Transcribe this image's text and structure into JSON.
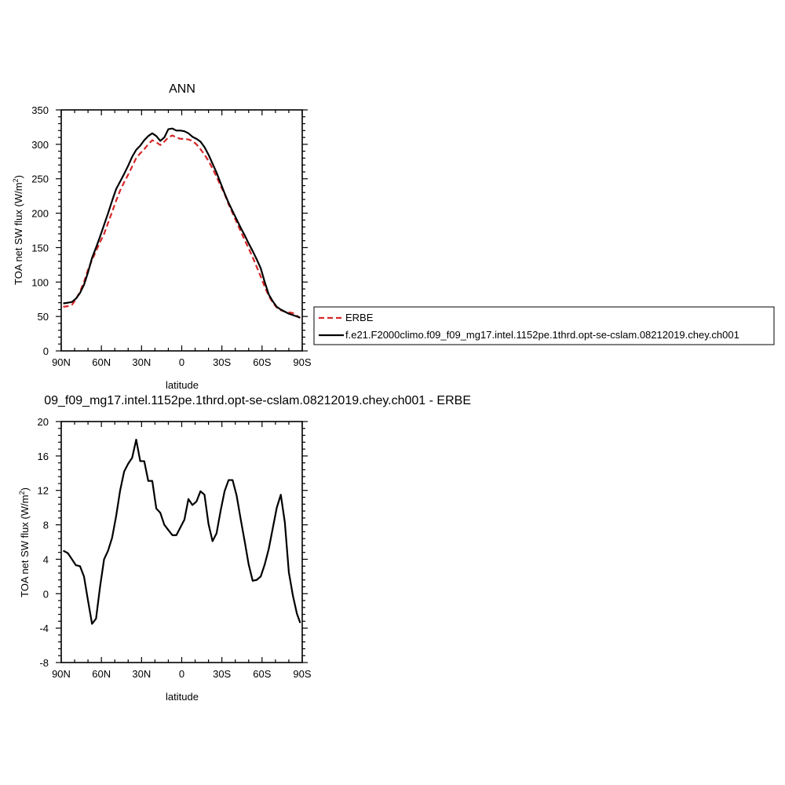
{
  "chart_data": [
    {
      "type": "line",
      "title": "ANN",
      "xlabel": "latitude",
      "ylabel": "TOA net SW flux (W/m",
      "ylabel_sup": "2",
      "ylabel_close": ")",
      "xlim": [
        90,
        -90
      ],
      "ylim": [
        0,
        350
      ],
      "x_ticks": [
        90,
        60,
        30,
        0,
        -30,
        -60,
        -90
      ],
      "x_tick_labels": [
        "90N",
        "60N",
        "30N",
        "0",
        "30S",
        "60S",
        "90S"
      ],
      "y_ticks": [
        0,
        50,
        100,
        150,
        200,
        250,
        300,
        350
      ],
      "y_tick_labels": [
        "0",
        "50",
        "100",
        "150",
        "200",
        "250",
        "300",
        "350"
      ],
      "legend": "right",
      "series": [
        {
          "name": "ERBE",
          "color": "#d62728",
          "dash": "dashed",
          "x": [
            88.5,
            85,
            82,
            79,
            76,
            73,
            70,
            67,
            64,
            61,
            58,
            55,
            52,
            49,
            46,
            43,
            40,
            37,
            34,
            31,
            28,
            25,
            22,
            19,
            16,
            13,
            10,
            7,
            4,
            1,
            -2,
            -5,
            -8,
            -11,
            -14,
            -17,
            -20,
            -23,
            -26,
            -29,
            -32,
            -35,
            -38,
            -41,
            -44,
            -47,
            -50,
            -53,
            -56,
            -59,
            -62,
            -65,
            -68,
            -71,
            -74,
            -77,
            -80,
            -83,
            -86,
            -88.5
          ],
          "values": [
            64,
            65,
            67,
            75,
            86,
            100,
            118,
            132,
            145,
            158,
            170,
            186,
            202,
            218,
            233,
            245,
            256,
            268,
            280,
            287,
            293,
            300,
            306,
            303,
            299,
            304,
            310,
            313,
            310,
            308,
            308,
            307,
            305,
            300,
            293,
            285,
            276,
            265,
            253,
            240,
            228,
            213,
            200,
            187,
            174,
            161,
            149,
            136,
            122,
            108,
            93,
            80,
            70,
            63,
            59,
            57,
            56,
            55,
            51,
            48
          ]
        },
        {
          "name": "f.e21.F2000climo.f09_f09_mg17.intel.1152pe.1thrd.opt-se-cslam.08212019.chey.ch001",
          "color": "#000000",
          "dash": "solid",
          "x": [
            88.5,
            85,
            82,
            79,
            76,
            73,
            70,
            67,
            64,
            61,
            58,
            55,
            52,
            49,
            46,
            43,
            40,
            37,
            34,
            31,
            28,
            25,
            22,
            19,
            16,
            13,
            10,
            7,
            4,
            1,
            -2,
            -5,
            -8,
            -11,
            -14,
            -17,
            -20,
            -23,
            -26,
            -29,
            -32,
            -35,
            -38,
            -41,
            -44,
            -47,
            -50,
            -53,
            -56,
            -59,
            -62,
            -65,
            -68,
            -71,
            -74,
            -77,
            -80,
            -83,
            -86,
            -88.5
          ],
          "values": [
            69,
            70,
            71,
            76,
            84,
            96,
            114,
            135,
            150,
            166,
            183,
            200,
            218,
            235,
            246,
            257,
            269,
            282,
            292,
            298,
            306,
            312,
            316,
            312,
            305,
            310,
            322,
            323,
            320,
            320,
            319,
            316,
            311,
            308,
            304,
            296,
            285,
            272,
            259,
            244,
            229,
            215,
            203,
            191,
            179,
            168,
            156,
            145,
            133,
            120,
            100,
            82,
            72,
            64,
            60,
            57,
            54,
            52,
            50,
            48
          ]
        }
      ]
    },
    {
      "type": "line",
      "title": "09_f09_mg17.intel.1152pe.1thrd.opt-se-cslam.08212019.chey.ch001 - ERBE",
      "xlabel": "latitude",
      "ylabel": "TOA net SW flux (W/m",
      "ylabel_sup": "2",
      "ylabel_close": ")",
      "xlim": [
        90,
        -90
      ],
      "ylim": [
        -8,
        20
      ],
      "x_ticks": [
        90,
        60,
        30,
        0,
        -30,
        -60,
        -90
      ],
      "x_tick_labels": [
        "90N",
        "60N",
        "30N",
        "0",
        "30S",
        "60S",
        "90S"
      ],
      "y_ticks": [
        -8,
        -4,
        0,
        4,
        8,
        12,
        16,
        20
      ],
      "y_tick_labels": [
        "-8",
        "-4",
        "0",
        "4",
        "8",
        "12",
        "16",
        "20"
      ],
      "series": [
        {
          "color": "#000000",
          "x": [
            88.5,
            85,
            82,
            79,
            76,
            73,
            70,
            67,
            64,
            61,
            58,
            55,
            52,
            49,
            46,
            43,
            40,
            37,
            34,
            31,
            28,
            25,
            22,
            19,
            16,
            13,
            10,
            7,
            4,
            1,
            -2,
            -5,
            -8,
            -11,
            -14,
            -17,
            -20,
            -23,
            -26,
            -29,
            -32,
            -35,
            -38,
            -41,
            -44,
            -47,
            -50,
            -53,
            -56,
            -59,
            -62,
            -65,
            -68,
            -71,
            -74,
            -77,
            -80,
            -83,
            -86,
            -88.5
          ],
          "values": [
            5,
            4.7,
            4,
            3.3,
            3.2,
            2,
            -0.8,
            -3.5,
            -2.9,
            0.8,
            4,
            5,
            6.5,
            9,
            12,
            14.2,
            15.1,
            15.8,
            17.9,
            15.4,
            15.4,
            13.1,
            13.1,
            9.9,
            9.4,
            8,
            7.4,
            6.8,
            6.8,
            7.7,
            8.6,
            11,
            10.3,
            10.7,
            11.9,
            11.5,
            8.1,
            6.1,
            7,
            9.6,
            11.9,
            13.2,
            13.2,
            11.4,
            8.7,
            6.1,
            3.4,
            1.5,
            1.6,
            2,
            3.4,
            5.2,
            7.6,
            10,
            11.5,
            8.3,
            2.5,
            -0.2,
            -2.3,
            -3.4
          ]
        }
      ]
    }
  ]
}
